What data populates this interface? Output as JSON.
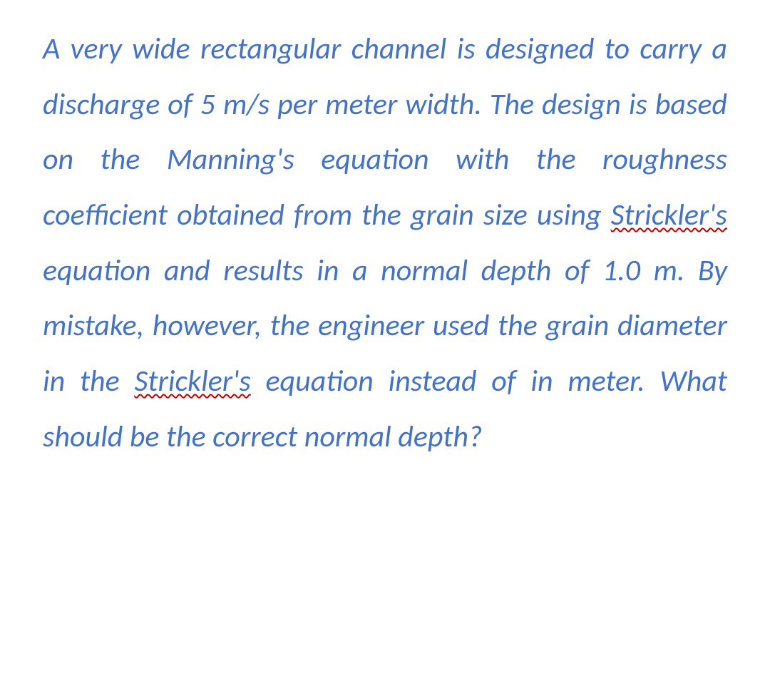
{
  "document": {
    "textColor": "#4472c4",
    "backgroundColor": "#ffffff",
    "fontStyle": "italic",
    "fontSizePt": 32,
    "textAlign": "justify",
    "spellcheckColor": "#c00000",
    "segments": {
      "s1": "A very wide rectangular channel is designed to carry a discharge of 5 m/s per meter width. The design is based on the Manning's equation with the roughness coefficient obtained from the grain size using ",
      "s2": "Strickler's",
      "s3": " equation and results in a normal depth of 1.0 m. By mistake, however, the engineer used the grain diameter in the ",
      "s4": "Strickler's",
      "s5": " equation instead of in meter. What should be the correct normal depth?"
    }
  }
}
